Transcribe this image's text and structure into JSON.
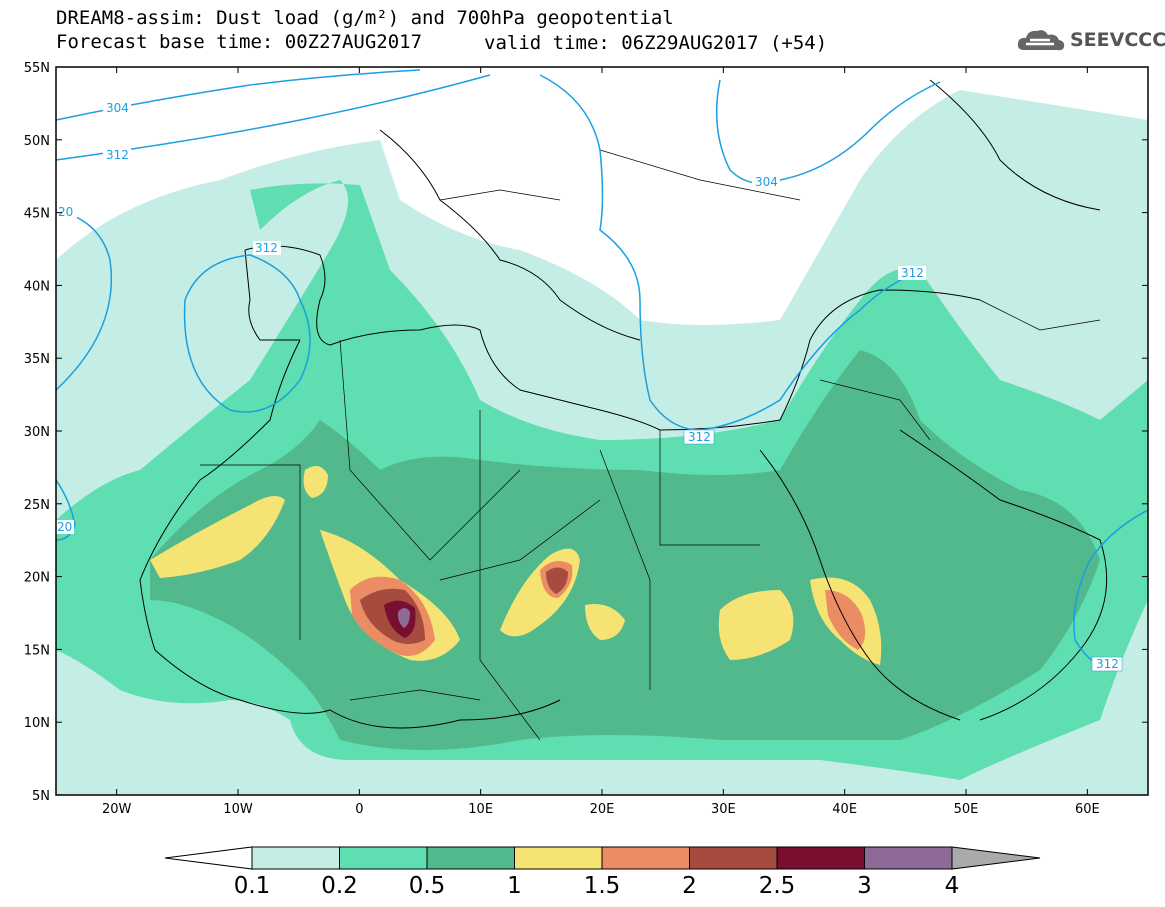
{
  "header": {
    "title_line1": "DREAM8-assim: Dust load (g/m²) and 700hPa geopotential",
    "forecast_base": "Forecast base time: 00Z27AUG2017",
    "valid_time": "valid time: 06Z29AUG2017 (+54)",
    "logo_text": "SEEVCCC"
  },
  "map": {
    "lat_labels": [
      "55N",
      "50N",
      "45N",
      "40N",
      "35N",
      "30N",
      "25N",
      "20N",
      "15N",
      "10N",
      "5N"
    ],
    "lon_labels": [
      "20W",
      "10W",
      "0",
      "10E",
      "20E",
      "30E",
      "40E",
      "50E",
      "60E"
    ],
    "contour_labels": [
      "304",
      "312",
      "20",
      "312",
      "304",
      "312",
      "312",
      "20",
      "312"
    ]
  },
  "colorbar": {
    "labels": [
      "0.1",
      "0.2",
      "0.5",
      "1",
      "1.5",
      "2",
      "2.5",
      "3",
      "4"
    ],
    "colors": [
      "#ffffff",
      "#c4eee5",
      "#5fdeb1",
      "#52b98d",
      "#f5e474",
      "#eb8c64",
      "#a64c3f",
      "#7a0e2e",
      "#8d6a98",
      "#aaaaaa"
    ]
  },
  "colors": {
    "dust_light": "#c4eee5",
    "dust_medium": "#5fdeb1",
    "dust_dark": "#52b98d",
    "dust_yellow": "#f5e474",
    "dust_orange": "#eb8c64",
    "dust_brown": "#a64c3f",
    "dust_maroon": "#7a0e2e",
    "dust_purple": "#8d6a98",
    "contour": "#1a9fe0"
  }
}
